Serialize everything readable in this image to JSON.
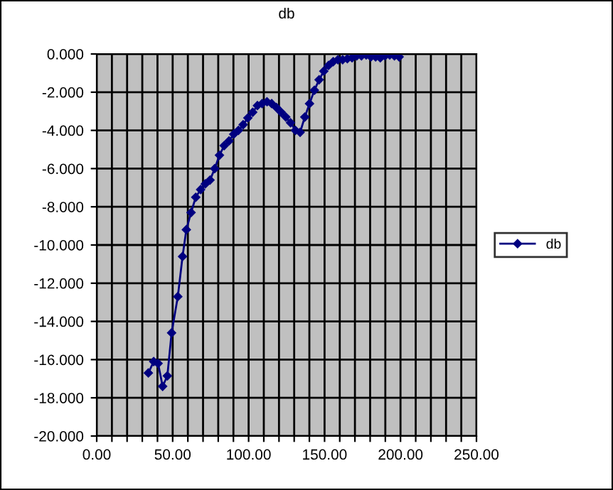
{
  "chart_data": {
    "type": "line",
    "title": "db",
    "x": [
      34.0,
      37.5,
      40.4,
      43.4,
      46.5,
      49.3,
      53.4,
      56.5,
      59.0,
      62.1,
      65.2,
      68.4,
      71.5,
      74.6,
      77.7,
      80.8,
      83.9,
      87.1,
      90.2,
      93.3,
      96.4,
      99.5,
      102.7,
      105.8,
      108.9,
      112.1,
      115.2,
      118.3,
      121.4,
      124.5,
      127.6,
      130.8,
      133.9,
      137.0,
      140.1,
      143.3,
      146.4,
      149.5,
      152.6,
      155.7,
      158.8,
      161.9,
      165.0,
      168.1,
      171.2,
      174.3,
      177.4,
      180.5,
      183.6,
      186.7,
      189.8,
      192.9,
      196.0,
      199.1
    ],
    "series": [
      {
        "name": "db",
        "color": "#000080",
        "values": [
          -16.7,
          -16.1,
          -16.2,
          -17.4,
          -16.85,
          -14.6,
          -12.7,
          -10.6,
          -9.2,
          -8.3,
          -7.5,
          -7.1,
          -6.8,
          -6.6,
          -6.0,
          -5.3,
          -4.8,
          -4.55,
          -4.2,
          -4.0,
          -3.7,
          -3.35,
          -3.05,
          -2.7,
          -2.6,
          -2.5,
          -2.6,
          -2.8,
          -3.05,
          -3.3,
          -3.6,
          -4.0,
          -4.1,
          -3.3,
          -2.6,
          -1.9,
          -1.35,
          -0.9,
          -0.6,
          -0.4,
          -0.3,
          -0.3,
          -0.25,
          -0.2,
          -0.1,
          -0.1,
          -0.05,
          -0.15,
          -0.15,
          -0.2,
          -0.1,
          -0.05,
          -0.1,
          -0.15
        ]
      }
    ],
    "xlim": [
      0,
      250
    ],
    "xticks": [
      {
        "value": 0,
        "label": "0.00"
      },
      {
        "value": 10,
        "label": null
      },
      {
        "value": 20,
        "label": null
      },
      {
        "value": 30,
        "label": null
      },
      {
        "value": 40,
        "label": null
      },
      {
        "value": 50,
        "label": "50.00"
      },
      {
        "value": 60,
        "label": null
      },
      {
        "value": 70,
        "label": null
      },
      {
        "value": 80,
        "label": null
      },
      {
        "value": 90,
        "label": null
      },
      {
        "value": 100,
        "label": "100.00"
      },
      {
        "value": 110,
        "label": null
      },
      {
        "value": 120,
        "label": null
      },
      {
        "value": 130,
        "label": null
      },
      {
        "value": 140,
        "label": null
      },
      {
        "value": 150,
        "label": "150.00"
      },
      {
        "value": 160,
        "label": null
      },
      {
        "value": 170,
        "label": null
      },
      {
        "value": 180,
        "label": null
      },
      {
        "value": 190,
        "label": null
      },
      {
        "value": 200,
        "label": "200.00"
      },
      {
        "value": 210,
        "label": null
      },
      {
        "value": 220,
        "label": null
      },
      {
        "value": 230,
        "label": null
      },
      {
        "value": 240,
        "label": null
      },
      {
        "value": 250,
        "label": "250.00"
      }
    ],
    "ylim": [
      -20,
      0
    ],
    "yticks": [
      {
        "value": 0,
        "label": "0.000"
      },
      {
        "value": -2,
        "label": "-2.000"
      },
      {
        "value": -4,
        "label": "-4.000"
      },
      {
        "value": -6,
        "label": "-6.000"
      },
      {
        "value": -8,
        "label": "-8.000"
      },
      {
        "value": -10,
        "label": "-10.000"
      },
      {
        "value": -12,
        "label": "-12.000"
      },
      {
        "value": -14,
        "label": "-14.000"
      },
      {
        "value": -16,
        "label": "-16.000"
      },
      {
        "value": -18,
        "label": "-18.000"
      },
      {
        "value": -20,
        "label": "-20.000"
      }
    ],
    "grid": true,
    "legend": "right",
    "marker": "diamond",
    "line_style": "solid"
  }
}
